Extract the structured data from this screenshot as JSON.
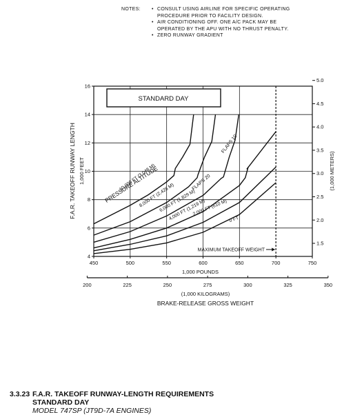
{
  "notes": {
    "header": "NOTES:",
    "items": [
      "CONSULT USING AIRLINE FOR SPECIFIC OPERATING PROCEDURE PRIOR TO FACILITY DESIGN.",
      "AIR CONDITIONING OFF. ONE A/C PACK MAY BE OPERATED BY THE APU WITH NO THRUST PENALTY.",
      "ZERO RUNWAY GRADIENT"
    ]
  },
  "caption": {
    "number": "3.3.23",
    "title": "F.A.R. TAKEOFF RUNWAY-LENGTH REQUIREMENTS",
    "subtitle": "STANDARD DAY",
    "model": "MODEL 747SP (JT9D-7A ENGINES)"
  },
  "chart_data": {
    "type": "line",
    "title": "STANDARD DAY",
    "xlabel": "1,000 POUNDS",
    "xlabel2": "(1,000 KILOGRAMS)",
    "xlabel_main": "BRAKE-RELEASE GROSS WEIGHT",
    "ylabel": "F.A.R. TAKEOFF RUNWAY LENGTH",
    "ylabel_sub": "1,000 FEET",
    "ylabel_right": "(1,000 METERS)",
    "xlim": [
      450,
      750
    ],
    "ylim": [
      4,
      16
    ],
    "x_ticks": [
      450,
      500,
      550,
      600,
      650,
      700,
      750
    ],
    "y_ticks": [
      4,
      6,
      8,
      10,
      12,
      14,
      16
    ],
    "x2_ticks": [
      "200",
      "225",
      "250",
      "275",
      "300",
      "325",
      "350"
    ],
    "y2_ticks": [
      "1.5",
      "2.0",
      "2.5",
      "3.0",
      "3.5",
      "4.0",
      "4.5",
      "5.0"
    ],
    "grid": true,
    "max_weight": {
      "x": 700,
      "label": "MAXIMUM TAKEOFF WEIGHT"
    },
    "group_label": "PRESSURE ALTITUDE",
    "flaps_labels": [
      "FLAPS 10",
      "FLAPS 20"
    ],
    "series": [
      {
        "name": "10,000 FT (3,048 M)",
        "x": [
          450,
          500,
          525,
          550,
          560,
          562,
          572,
          582,
          587
        ],
        "y": [
          6.3,
          7.6,
          8.35,
          9.25,
          9.7,
          10.2,
          11.0,
          11.9,
          14.0
        ]
      },
      {
        "name": "8,000 FT (2,428 M)",
        "x": [
          450,
          500,
          550,
          580,
          592,
          593,
          602,
          612,
          617
        ],
        "y": [
          5.5,
          6.45,
          7.8,
          8.9,
          9.55,
          9.75,
          11.0,
          12.1,
          14.0
        ]
      },
      {
        "name": "6,000 FT (1,829 M)",
        "x": [
          450,
          500,
          550,
          600,
          625,
          628,
          636,
          644,
          649
        ],
        "y": [
          5.0,
          5.75,
          6.85,
          8.3,
          9.5,
          9.6,
          11.0,
          12.2,
          14.0
        ]
      },
      {
        "name": "4,000 FT (1,219 M)",
        "x": [
          450,
          500,
          550,
          600,
          650,
          658,
          662
        ],
        "y": [
          4.6,
          5.2,
          6.0,
          7.15,
          9.0,
          9.55,
          10.3
        ]
      },
      {
        "name": "2,000 FT (610 M)",
        "x": [
          450,
          500,
          550,
          600,
          650,
          700
        ],
        "y": [
          4.4,
          4.85,
          5.45,
          6.4,
          7.8,
          10.3
        ]
      },
      {
        "name": "0 FT",
        "x": [
          450,
          500,
          550,
          600,
          650,
          700
        ],
        "y": [
          4.2,
          4.5,
          4.95,
          5.7,
          6.95,
          9.2
        ]
      },
      {
        "name": "",
        "x": [
          660,
          700
        ],
        "y": [
          10.15,
          12.8
        ]
      }
    ]
  }
}
